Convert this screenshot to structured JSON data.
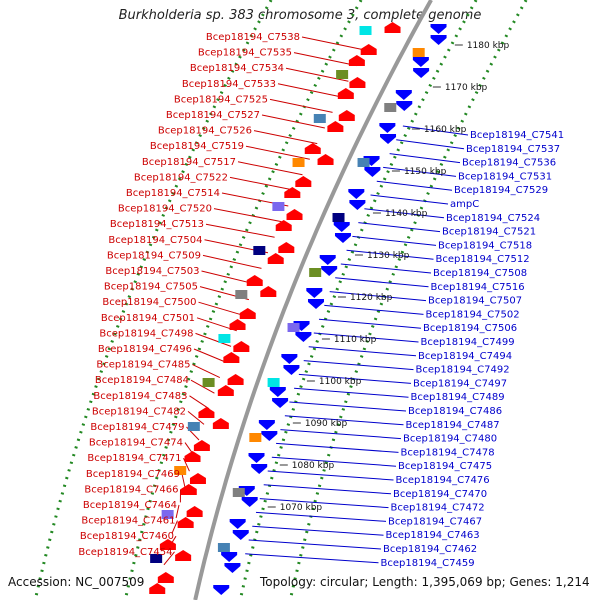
{
  "title": "Burkholderia sp. 383 chromosome 3, complete genome",
  "accession_text": "Accession: NC_007509",
  "summary_text": "Topology: circular; Length: 1,395,069 bp; Genes: 1,214",
  "colors": {
    "forward_gene": "#ff0000",
    "reverse_gene": "#0000ff",
    "forward_label": "#cc0000",
    "reverse_label": "#0000cc",
    "backbone": "#999999",
    "dotted_ring": "#228822",
    "rna_teal": "#00e5e5",
    "rna_olive": "#6b8e23",
    "rna_orange": "#ff8800",
    "rna_navy": "#000080",
    "rna_steelblue": "#4682b4",
    "rna_purple": "#7b68ee",
    "rna_grey": "#808080"
  },
  "kbp_ticks": [
    "1180 kbp",
    "1170 kbp",
    "1160 kbp",
    "1150 kbp",
    "1140 kbp",
    "1130 kbp",
    "1120 kbp",
    "1110 kbp",
    "1100 kbp",
    "1090 kbp",
    "1080 kbp",
    "1070 kbp"
  ],
  "left_labels": [
    "Bcep18194_C7538",
    "Bcep18194_C7535",
    "Bcep18194_C7534",
    "Bcep18194_C7533",
    "Bcep18194_C7525",
    "Bcep18194_C7527",
    "Bcep18194_C7526",
    "Bcep18194_C7519",
    "Bcep18194_C7517",
    "Bcep18194_C7522",
    "Bcep18194_C7514",
    "Bcep18194_C7520",
    "Bcep18194_C7513",
    "Bcep18194_C7504",
    "Bcep18194_C7509",
    "Bcep18194_C7503",
    "Bcep18194_C7505",
    "Bcep18194_C7500",
    "Bcep18194_C7501",
    "Bcep18194_C7498",
    "Bcep18194_C7496",
    "Bcep18194_C7485",
    "Bcep18194_C7484",
    "Bcep18194_C7483",
    "Bcep18194_C7482",
    "Bcep18194_C7479",
    "Bcep18194_C7474",
    "Bcep18194_C7471",
    "Bcep18194_C7469",
    "Bcep18194_C7466",
    "Bcep18194_C7464",
    "Bcep18194_C7461",
    "Bcep18194_C7460",
    "Bcep18194_C7454"
  ],
  "right_labels": [
    "Bcep18194_C7541",
    "Bcep18194_C7537",
    "Bcep18194_C7536",
    "Bcep18194_C7531",
    "Bcep18194_C7529",
    "ampC",
    "Bcep18194_C7524",
    "Bcep18194_C7521",
    "Bcep18194_C7518",
    "Bcep18194_C7512",
    "Bcep18194_C7508",
    "Bcep18194_C7516",
    "Bcep18194_C7507",
    "Bcep18194_C7502",
    "Bcep18194_C7506",
    "Bcep18194_C7499",
    "Bcep18194_C7494",
    "Bcep18194_C7492",
    "Bcep18194_C7497",
    "Bcep18194_C7489",
    "Bcep18194_C7486",
    "Bcep18194_C7487",
    "Bcep18194_C7480",
    "Bcep18194_C7478",
    "Bcep18194_C7475",
    "Bcep18194_C7476",
    "Bcep18194_C7470",
    "Bcep18194_C7472",
    "Bcep18194_C7467",
    "Bcep18194_C7463",
    "Bcep18194_C7462",
    "Bcep18194_C7459"
  ]
}
